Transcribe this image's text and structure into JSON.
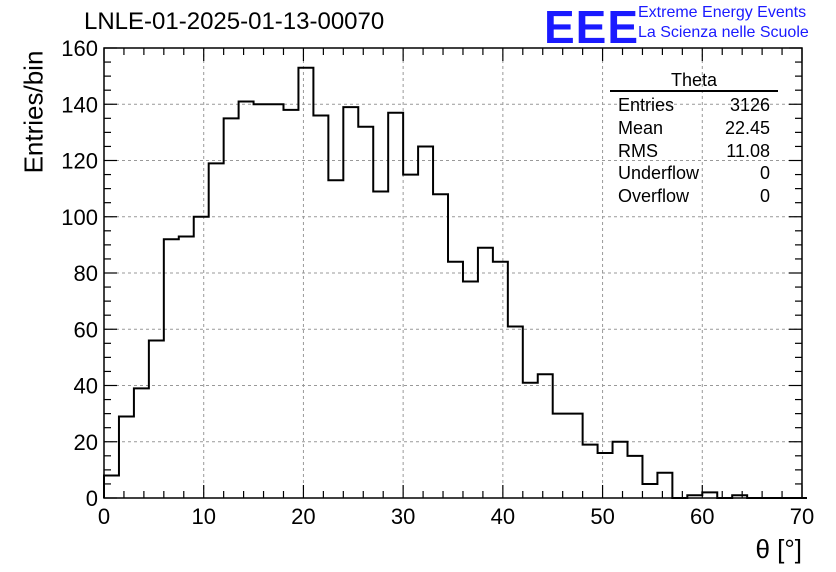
{
  "header": {
    "run_title": "LNLE-01-2025-01-13-00070",
    "logo_text": "EEE",
    "logo_line1": "Extreme Energy Events",
    "logo_line2": "La Scienza nelle Scuole",
    "logo_color": "#1a1aff"
  },
  "stats": {
    "title": "Theta",
    "rows": [
      {
        "label": "Entries",
        "value": "3126"
      },
      {
        "label": "Mean",
        "value": "22.45"
      },
      {
        "label": "RMS",
        "value": "11.08"
      },
      {
        "label": "Underflow",
        "value": "0"
      },
      {
        "label": "Overflow",
        "value": "0"
      }
    ]
  },
  "chart_data": {
    "type": "bar",
    "style": "step-histogram",
    "xlabel": "θ [°]",
    "ylabel": "Entries/bin",
    "xlim": [
      0,
      70
    ],
    "ylim": [
      0,
      160
    ],
    "xticks": [
      0,
      10,
      20,
      30,
      40,
      50,
      60,
      70
    ],
    "yticks": [
      0,
      20,
      40,
      60,
      80,
      100,
      120,
      140,
      160
    ],
    "grid": true,
    "bin_width": 1.5,
    "bin_edges_start": 0,
    "values": [
      8,
      29,
      39,
      56,
      92,
      93,
      100,
      119,
      135,
      141,
      140,
      140,
      138,
      153,
      136,
      113,
      139,
      132,
      109,
      137,
      115,
      125,
      108,
      84,
      77,
      89,
      84,
      61,
      41,
      44,
      30,
      30,
      19,
      16,
      20,
      15,
      5,
      9,
      0,
      1,
      2,
      0,
      1,
      0,
      0,
      0,
      0
    ],
    "line_color": "#000000"
  }
}
